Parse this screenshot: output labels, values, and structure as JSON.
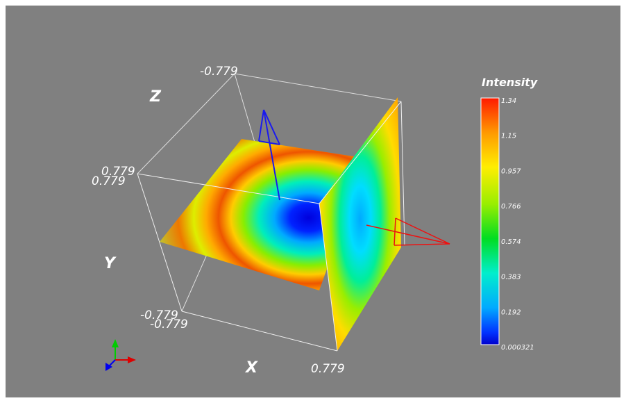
{
  "axes": {
    "x_label": "X",
    "y_label": "Y",
    "z_label": "Z"
  },
  "bounds": {
    "top_back": "-0.779",
    "left_a": "0.779",
    "left_b": "0.779",
    "bottom_left_a": "-0.779",
    "bottom_left_b": "-0.779",
    "bottom_right": "0.779"
  },
  "colorbar": {
    "title": "Intensity",
    "ticks": [
      "1.34",
      "1.15",
      "0.957",
      "0.766",
      "0.574",
      "0.383",
      "0.192",
      "0.000321"
    ],
    "colors": [
      "#ff1a00",
      "#ff9900",
      "#ffee00",
      "#99ee00",
      "#00dd22",
      "#00eecc",
      "#00aaff",
      "#0033ff",
      "#0000cc"
    ]
  },
  "orientation_triad": {
    "colors": {
      "x": "#dd0000",
      "y": "#00cc00",
      "z": "#0000ee"
    }
  }
}
